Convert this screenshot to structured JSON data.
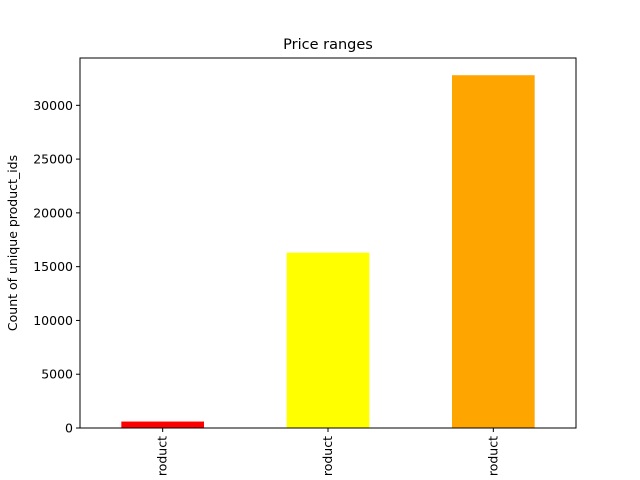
{
  "chart_data": {
    "type": "bar",
    "title": "Price ranges",
    "xlabel": "",
    "ylabel": "Count of unique product_ids",
    "categories": [
      "roduct",
      "roduct",
      "roduct"
    ],
    "values": [
      600,
      16300,
      32800
    ],
    "colors": [
      "#ff0000",
      "#ffff00",
      "#ffa500"
    ],
    "ylim": [
      0,
      34400
    ],
    "yticks": [
      0,
      5000,
      10000,
      15000,
      20000,
      25000,
      30000
    ],
    "grid": false,
    "legend": "none"
  }
}
